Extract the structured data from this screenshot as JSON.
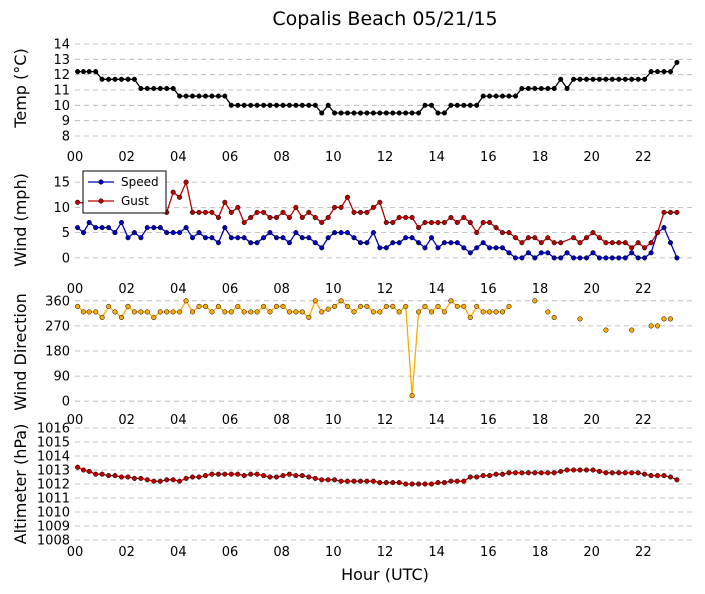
{
  "chart_data": [
    {
      "type": "line",
      "title": "Copalis Beach 05/21/15",
      "ylabel": "Temp (°C)",
      "ylim": [
        8,
        14
      ],
      "yticks": [
        8,
        9,
        10,
        11,
        12,
        13,
        14
      ],
      "xlim": [
        0,
        24
      ],
      "xticks": [
        "00",
        "02",
        "04",
        "06",
        "08",
        "10",
        "12",
        "14",
        "16",
        "18",
        "20",
        "22"
      ],
      "grid": true,
      "series": [
        {
          "color": "#000000",
          "x": [
            0.1,
            0.33,
            0.55,
            0.8,
            1.05,
            1.3,
            1.55,
            1.8,
            2.05,
            2.3,
            2.55,
            2.8,
            3.05,
            3.3,
            3.55,
            3.8,
            4.05,
            4.3,
            4.55,
            4.8,
            5.05,
            5.3,
            5.55,
            5.8,
            6.05,
            6.3,
            6.55,
            6.8,
            7.05,
            7.3,
            7.55,
            7.8,
            8.05,
            8.3,
            8.55,
            8.8,
            9.05,
            9.3,
            9.55,
            9.8,
            10.05,
            10.3,
            10.55,
            10.8,
            11.05,
            11.3,
            11.55,
            11.8,
            12.05,
            12.3,
            12.55,
            12.8,
            13.05,
            13.3,
            13.55,
            13.8,
            14.05,
            14.3,
            14.55,
            14.8,
            15.05,
            15.3,
            15.55,
            15.8,
            16.05,
            16.3,
            16.55,
            16.8,
            17.05,
            17.3,
            17.55,
            17.8,
            18.05,
            18.3,
            18.55,
            18.8,
            19.05,
            19.3,
            19.55,
            19.8,
            20.05,
            20.3,
            20.55,
            20.8,
            21.05,
            21.3,
            21.55,
            21.8,
            22.05,
            22.3,
            22.55,
            22.8,
            23.05,
            23.3
          ],
          "y": [
            12.2,
            12.2,
            12.2,
            12.2,
            11.7,
            11.7,
            11.7,
            11.7,
            11.7,
            11.7,
            11.1,
            11.1,
            11.1,
            11.1,
            11.1,
            11.1,
            10.6,
            10.6,
            10.6,
            10.6,
            10.6,
            10.6,
            10.6,
            10.6,
            10.0,
            10.0,
            10.0,
            10.0,
            10.0,
            10.0,
            10.0,
            10.0,
            10.0,
            10.0,
            10.0,
            10.0,
            10.0,
            10.0,
            9.5,
            10.0,
            9.5,
            9.5,
            9.5,
            9.5,
            9.5,
            9.5,
            9.5,
            9.5,
            9.5,
            9.5,
            9.5,
            9.5,
            9.5,
            9.5,
            10.0,
            10.0,
            9.5,
            9.5,
            10.0,
            10.0,
            10.0,
            10.0,
            10.0,
            10.6,
            10.6,
            10.6,
            10.6,
            10.6,
            10.6,
            11.1,
            11.1,
            11.1,
            11.1,
            11.1,
            11.1,
            11.7,
            11.1,
            11.7,
            11.7,
            11.7,
            11.7,
            11.7,
            11.7,
            11.7,
            11.7,
            11.7,
            11.7,
            11.7,
            11.7,
            12.2,
            12.2,
            12.2,
            12.2,
            12.8
          ]
        }
      ]
    },
    {
      "type": "line",
      "ylabel": "Wind (mph)",
      "ylim": [
        -2,
        17
      ],
      "yticks": [
        0,
        5,
        10,
        15
      ],
      "xlim": [
        0,
        24
      ],
      "xticks": [
        "00",
        "02",
        "04",
        "06",
        "08",
        "10",
        "12",
        "14",
        "16",
        "18",
        "20",
        "22"
      ],
      "grid": true,
      "legend": "top-left",
      "series": [
        {
          "name": "Speed",
          "color": "#0000bb",
          "x": [
            0.1,
            0.33,
            0.55,
            0.8,
            1.05,
            1.3,
            1.55,
            1.8,
            2.05,
            2.3,
            2.55,
            2.8,
            3.05,
            3.3,
            3.55,
            3.8,
            4.05,
            4.3,
            4.55,
            4.8,
            5.05,
            5.3,
            5.55,
            5.8,
            6.05,
            6.3,
            6.55,
            6.8,
            7.05,
            7.3,
            7.55,
            7.8,
            8.05,
            8.3,
            8.55,
            8.8,
            9.05,
            9.3,
            9.55,
            9.8,
            10.05,
            10.3,
            10.55,
            10.8,
            11.05,
            11.3,
            11.55,
            11.8,
            12.05,
            12.3,
            12.55,
            12.8,
            13.05,
            13.3,
            13.55,
            13.8,
            14.05,
            14.3,
            14.55,
            14.8,
            15.05,
            15.3,
            15.55,
            15.8,
            16.05,
            16.3,
            16.55,
            16.8,
            17.05,
            17.3,
            17.55,
            17.8,
            18.05,
            18.3,
            18.55,
            18.8,
            19.05,
            19.3,
            19.55,
            19.8,
            20.05,
            20.3,
            20.55,
            20.8,
            21.05,
            21.3,
            21.55,
            21.8,
            22.05,
            22.3,
            22.55,
            22.8,
            23.05,
            23.3
          ],
          "y": [
            6,
            5,
            7,
            6,
            6,
            6,
            5,
            7,
            4,
            5,
            4,
            6,
            6,
            6,
            5,
            5,
            5,
            6,
            4,
            5,
            4,
            4,
            3,
            6,
            4,
            4,
            4,
            3,
            3,
            4,
            5,
            4,
            4,
            3,
            5,
            4,
            4,
            3,
            2,
            4,
            5,
            5,
            5,
            4,
            3,
            3,
            5,
            2,
            2,
            3,
            3,
            4,
            4,
            3,
            2,
            4,
            2,
            3,
            3,
            3,
            2,
            1,
            2,
            3,
            2,
            2,
            2,
            1,
            0,
            0,
            1,
            0,
            1,
            1,
            0,
            0,
            1,
            0,
            0,
            0,
            1,
            0,
            0,
            0,
            0,
            0,
            1,
            0,
            0,
            1,
            5,
            6,
            3,
            0
          ]
        },
        {
          "name": "Gust",
          "color": "#bb0000",
          "x": [
            0.1,
            3.55,
            3.8,
            4.05,
            4.3,
            4.55,
            4.8,
            5.05,
            5.3,
            5.55,
            5.8,
            6.05,
            6.3,
            6.55,
            6.8,
            7.05,
            7.3,
            7.55,
            7.8,
            8.05,
            8.3,
            8.55,
            8.8,
            9.05,
            9.3,
            9.55,
            9.8,
            10.05,
            10.3,
            10.55,
            10.8,
            11.05,
            11.3,
            11.55,
            11.8,
            12.05,
            12.3,
            12.55,
            12.8,
            13.05,
            13.3,
            13.55,
            13.8,
            14.05,
            14.3,
            14.55,
            14.8,
            15.05,
            15.3,
            15.55,
            15.8,
            16.05,
            16.3,
            16.55,
            16.8,
            17.05,
            17.3,
            17.55,
            17.8,
            18.05,
            18.3,
            18.55,
            18.8,
            19.3,
            19.55,
            19.8,
            20.05,
            20.3,
            20.55,
            20.8,
            21.05,
            21.3,
            21.55,
            21.8,
            22.05,
            22.3,
            22.55,
            22.8,
            23.05,
            23.3
          ],
          "y": [
            11,
            9,
            13,
            12,
            15,
            9,
            9,
            9,
            9,
            8,
            11,
            9,
            10,
            7,
            8,
            9,
            9,
            8,
            8,
            9,
            8,
            10,
            8,
            9,
            8,
            7,
            8,
            10,
            10,
            12,
            9,
            9,
            9,
            10,
            11,
            7,
            7,
            8,
            8,
            8,
            6,
            7,
            7,
            7,
            7,
            8,
            7,
            8,
            7,
            5,
            7,
            7,
            6,
            5,
            5,
            4,
            3,
            4,
            4,
            3,
            4,
            3,
            3,
            4,
            3,
            4,
            5,
            4,
            3,
            3,
            3,
            3,
            2,
            3,
            2,
            3,
            5,
            9,
            9,
            9
          ]
        }
      ]
    },
    {
      "type": "line",
      "ylabel": "Wind Direction",
      "ylim": [
        -10,
        370
      ],
      "yticks": [
        0,
        90,
        180,
        270,
        360
      ],
      "xlim": [
        0,
        24
      ],
      "xticks": [
        "00",
        "02",
        "04",
        "06",
        "08",
        "10",
        "12",
        "14",
        "16",
        "18",
        "20",
        "22"
      ],
      "grid": true,
      "series": [
        {
          "color": "#ffaa00",
          "x": [
            0.1,
            0.33,
            0.55,
            0.8,
            1.05,
            1.3,
            1.55,
            1.8,
            2.05,
            2.3,
            2.55,
            2.8,
            3.05,
            3.3,
            3.55,
            3.8,
            4.05,
            4.3,
            4.55,
            4.8,
            5.05,
            5.3,
            5.55,
            5.8,
            6.05,
            6.3,
            6.55,
            6.8,
            7.05,
            7.3,
            7.55,
            7.8,
            8.05,
            8.3,
            8.55,
            8.8,
            9.05,
            9.3,
            9.55,
            9.8,
            10.05,
            10.3,
            10.55,
            10.8,
            11.05,
            11.3,
            11.55,
            11.8,
            12.05,
            12.3,
            12.55,
            12.8,
            13.05,
            13.3,
            13.55,
            13.8,
            14.05,
            14.3,
            14.55,
            14.8,
            15.05,
            15.3,
            15.55,
            15.8,
            16.05,
            16.3,
            16.55,
            16.8,
            17.05
          ],
          "y": [
            340,
            320,
            320,
            320,
            300,
            340,
            320,
            300,
            340,
            320,
            320,
            320,
            300,
            320,
            320,
            320,
            320,
            360,
            320,
            340,
            340,
            320,
            340,
            320,
            320,
            340,
            320,
            320,
            320,
            340,
            320,
            340,
            340,
            320,
            320,
            320,
            300,
            360,
            320,
            330,
            340,
            360,
            340,
            320,
            340,
            340,
            320,
            320,
            340,
            340,
            320,
            340,
            20,
            320,
            340,
            320,
            340,
            320,
            360,
            340,
            340,
            300,
            340,
            320,
            320,
            320,
            320,
            340,
            null
          ]
        },
        {
          "color": "#ffaa00",
          "markers_only": true,
          "x": [
            17.8,
            18.3,
            18.55,
            19.55,
            20.55,
            21.55,
            22.3,
            22.55,
            22.8,
            23.05
          ],
          "y": [
            360,
            320,
            300,
            295,
            255,
            255,
            270,
            270,
            295,
            295
          ]
        }
      ]
    },
    {
      "type": "line",
      "ylabel": "Altimeter (hPa)",
      "xlabel": "Hour (UTC)",
      "ylim": [
        1008,
        1016
      ],
      "yticks": [
        1008,
        1009,
        1010,
        1011,
        1012,
        1013,
        1014,
        1015,
        1016
      ],
      "xlim": [
        0,
        24
      ],
      "xticks": [
        "00",
        "02",
        "04",
        "06",
        "08",
        "10",
        "12",
        "14",
        "16",
        "18",
        "20",
        "22"
      ],
      "grid": true,
      "series": [
        {
          "color": "#bb0000",
          "x": [
            0.1,
            0.33,
            0.55,
            0.8,
            1.05,
            1.3,
            1.55,
            1.8,
            2.05,
            2.3,
            2.55,
            2.8,
            3.05,
            3.3,
            3.55,
            3.8,
            4.05,
            4.3,
            4.55,
            4.8,
            5.05,
            5.3,
            5.55,
            5.8,
            6.05,
            6.3,
            6.55,
            6.8,
            7.05,
            7.3,
            7.55,
            7.8,
            8.05,
            8.3,
            8.55,
            8.8,
            9.05,
            9.3,
            9.55,
            9.8,
            10.05,
            10.3,
            10.55,
            10.8,
            11.05,
            11.3,
            11.55,
            11.8,
            12.05,
            12.3,
            12.55,
            12.8,
            13.05,
            13.3,
            13.55,
            13.8,
            14.05,
            14.3,
            14.55,
            14.8,
            15.05,
            15.3,
            15.55,
            15.8,
            16.05,
            16.3,
            16.55,
            16.8,
            17.05,
            17.3,
            17.55,
            17.8,
            18.05,
            18.3,
            18.55,
            18.8,
            19.05,
            19.3,
            19.55,
            19.8,
            20.05,
            20.3,
            20.55,
            20.8,
            21.05,
            21.3,
            21.55,
            21.8,
            22.05,
            22.3,
            22.55,
            22.8,
            23.05,
            23.3
          ],
          "y": [
            1013.2,
            1013.0,
            1012.9,
            1012.7,
            1012.7,
            1012.6,
            1012.6,
            1012.5,
            1012.5,
            1012.4,
            1012.4,
            1012.3,
            1012.2,
            1012.2,
            1012.3,
            1012.3,
            1012.2,
            1012.4,
            1012.5,
            1012.5,
            1012.6,
            1012.7,
            1012.7,
            1012.7,
            1012.7,
            1012.7,
            1012.6,
            1012.7,
            1012.7,
            1012.6,
            1012.5,
            1012.5,
            1012.6,
            1012.7,
            1012.6,
            1012.6,
            1012.5,
            1012.4,
            1012.3,
            1012.3,
            1012.3,
            1012.2,
            1012.2,
            1012.2,
            1012.2,
            1012.2,
            1012.2,
            1012.1,
            1012.1,
            1012.1,
            1012.1,
            1012.0,
            1012.0,
            1012.0,
            1012.0,
            1012.0,
            1012.1,
            1012.1,
            1012.2,
            1012.2,
            1012.2,
            1012.5,
            1012.5,
            1012.6,
            1012.6,
            1012.7,
            1012.7,
            1012.8,
            1012.8,
            1012.8,
            1012.8,
            1012.8,
            1012.8,
            1012.8,
            1012.8,
            1012.9,
            1013.0,
            1013.0,
            1013.0,
            1013.0,
            1013.0,
            1012.9,
            1012.8,
            1012.8,
            1012.8,
            1012.8,
            1012.8,
            1012.8,
            1012.7,
            1012.6,
            1012.6,
            1012.6,
            1012.5,
            1012.3
          ]
        }
      ]
    }
  ]
}
